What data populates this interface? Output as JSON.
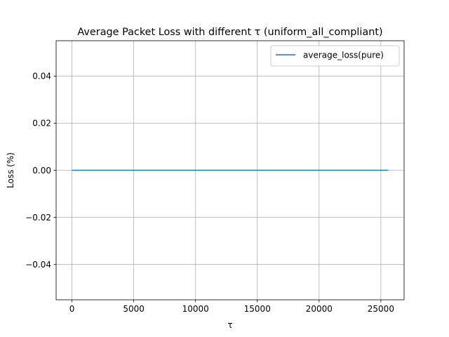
{
  "chart_data": {
    "type": "line",
    "title": "Average Packet Loss with different τ (uniform_all_compliant)",
    "xlabel": "τ",
    "ylabel": "Loss (%)",
    "xlim": [
      -1280,
      26880
    ],
    "ylim": [
      -0.055,
      0.055
    ],
    "xticks": [
      0,
      5000,
      10000,
      15000,
      20000,
      25000
    ],
    "xtick_labels": [
      "0",
      "5000",
      "10000",
      "15000",
      "20000",
      "25000"
    ],
    "yticks": [
      -0.04,
      -0.02,
      0.0,
      0.02,
      0.04
    ],
    "ytick_labels": [
      "−0.04",
      "−0.02",
      "0.00",
      "0.02",
      "0.04"
    ],
    "grid": true,
    "legend": {
      "position": "top-right"
    },
    "series": [
      {
        "name": "average_loss(pure)",
        "color": "#1f77b4",
        "x": [
          0,
          25600
        ],
        "y": [
          0,
          0
        ]
      }
    ]
  }
}
